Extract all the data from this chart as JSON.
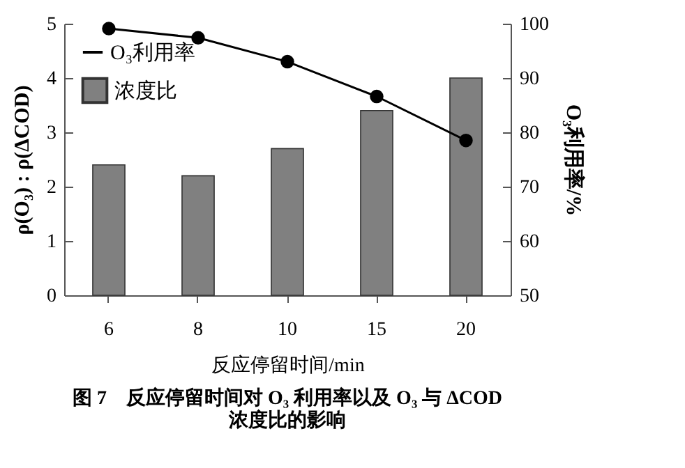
{
  "chart_data": {
    "type": "bar",
    "title": "图 7　反应停留时间对 O₃ 利用率以及 O₃ 与 ΔCOD 浓度比的影响",
    "xlabel": "反应停留时间/min",
    "ylabel": "ρ(O₃) : ρ(ΔCOD)",
    "y2label": "O₃利用率/%",
    "categories": [
      "6",
      "8",
      "10",
      "15",
      "20"
    ],
    "series": [
      {
        "name": "O₃利用率",
        "type": "line",
        "axis": "y2",
        "color": "#000000",
        "marker": "circle",
        "values": [
          99.1,
          97.4,
          93.0,
          86.6,
          78.5
        ]
      },
      {
        "name": "浓度比",
        "color": "#808080",
        "values": [
          2.4,
          2.2,
          2.7,
          3.4,
          4.0
        ]
      }
    ],
    "ylim": [
      0,
      5
    ],
    "yticks": [
      0,
      1,
      2,
      3,
      4,
      5
    ],
    "y2lim": [
      50,
      100
    ],
    "y2ticks": [
      50,
      60,
      70,
      80,
      90,
      100
    ],
    "legend": "top left",
    "grid": false
  }
}
